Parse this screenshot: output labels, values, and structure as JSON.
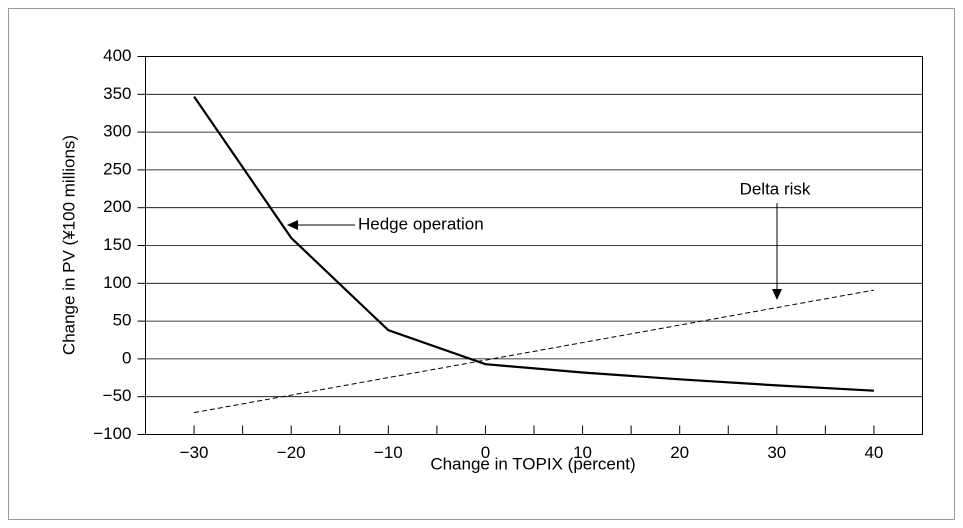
{
  "chart_data": {
    "type": "line",
    "x_label": "Change in TOPIX (percent)",
    "y_label": "Change in PV (¥100 millions)",
    "xlim": [
      -35,
      45
    ],
    "ylim": [
      -100,
      400
    ],
    "xticks": [
      {
        "value": -30,
        "label": "−30"
      },
      {
        "value": -20,
        "label": "−20"
      },
      {
        "value": -10,
        "label": "−10"
      },
      0,
      10,
      20,
      30,
      40
    ],
    "xminor_ticks": [
      -25,
      -15,
      -5,
      5,
      15,
      25,
      35
    ],
    "yticks": [
      {
        "value": -100,
        "label": "−100"
      },
      {
        "value": -50,
        "label": "−50"
      },
      0,
      50,
      100,
      150,
      200,
      250,
      300,
      350,
      400
    ],
    "grid": true,
    "series": [
      {
        "name": "Hedge operation",
        "color": "#000000",
        "dashed": false,
        "x": [
          -30,
          -20,
          -10,
          0,
          10,
          20,
          30,
          40
        ],
        "values": [
          347,
          160,
          38,
          -7,
          -18,
          -27,
          -35,
          -42
        ]
      },
      {
        "name": "Delta risk",
        "color": "#000000",
        "dashed": true,
        "x": [
          -30,
          40
        ],
        "values": [
          -71,
          91
        ]
      }
    ]
  }
}
